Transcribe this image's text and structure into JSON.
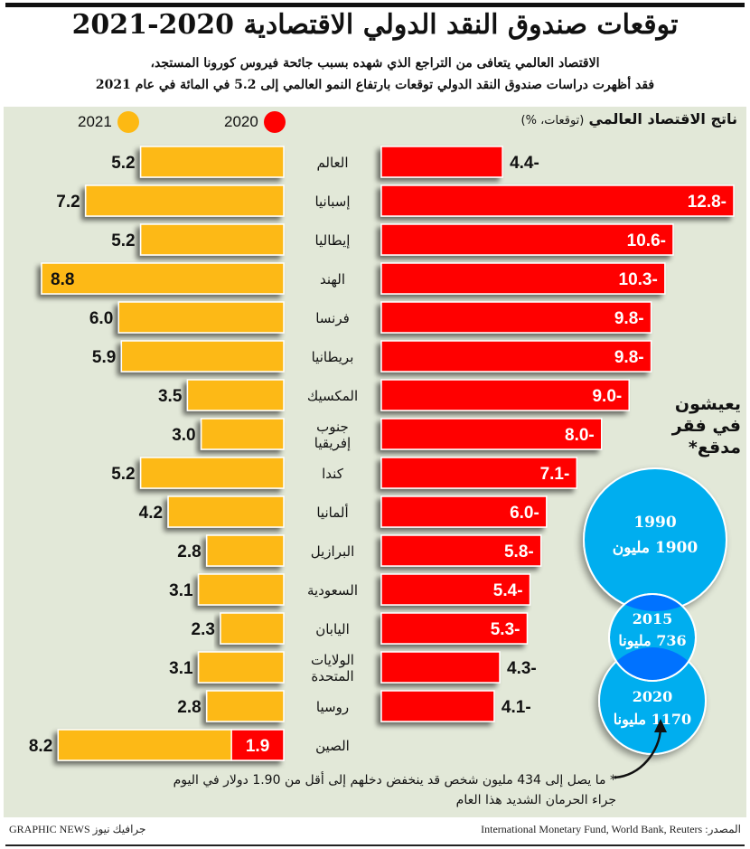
{
  "title": "توقعات صندوق النقد الدولي الاقتصادية 2020-2021",
  "subtitle_lines": [
    "الاقتصاد العالمي يتعافى من التراجع الذي شهده بسبب جائحة فيروس كورونا المستجد،",
    "فقد أظهرت دراسات صندوق النقد الدولي توقعات بارتفاع النمو العالمي إلى 5.2 في المائة في عام 2021"
  ],
  "legend": [
    {
      "label": "2020",
      "color": "#ff0000"
    },
    {
      "label": "2021",
      "color": "#fdb913"
    }
  ],
  "chart_heading": {
    "main": "ناتج الاقتصاد العالمي",
    "unit": "(توقعات، %)"
  },
  "chart_data": {
    "type": "bar",
    "title": "ناتج الاقتصاد العالمي (توقعات، %)",
    "xlabel": "",
    "ylabel": "",
    "orientation": "horizontal-diverging",
    "categories": [
      "العالم",
      "إسبانيا",
      "إيطاليا",
      "الهند",
      "فرنسا",
      "بريطانيا",
      "المكسيك",
      "جنوب إفريقيا",
      "كندا",
      "ألمانيا",
      "البرازيل",
      "السعودية",
      "اليابان",
      "الولايات المتحدة",
      "روسيا",
      "الصين"
    ],
    "series": [
      {
        "name": "2020",
        "color": "#ff0000",
        "values": [
          -4.4,
          -12.8,
          -10.6,
          -10.3,
          -9.8,
          -9.8,
          -9.0,
          -8.0,
          -7.1,
          -6.0,
          -5.8,
          -5.4,
          -5.3,
          -4.3,
          -4.1,
          1.9
        ],
        "labels": [
          "4.4-",
          "12.8-",
          "10.6-",
          "10.3-",
          "9.8-",
          "9.8-",
          "9.0-",
          "8.0-",
          "7.1-",
          "6.0-",
          "5.8-",
          "5.4-",
          "5.3-",
          "4.3-",
          "4.1-",
          "1.9"
        ]
      },
      {
        "name": "2021",
        "color": "#fdb913",
        "values": [
          5.2,
          7.2,
          5.2,
          8.8,
          6.0,
          5.9,
          3.5,
          3.0,
          5.2,
          4.2,
          2.8,
          3.1,
          2.3,
          3.1,
          2.8,
          8.2
        ],
        "labels": [
          "5.2",
          "7.2",
          "5.2",
          "8.8",
          "6.0",
          "5.9",
          "3.5",
          "3.0",
          "5.2",
          "4.2",
          "2.8",
          "3.1",
          "2.3",
          "3.1",
          "2.8",
          "8.2"
        ]
      }
    ],
    "grid": false,
    "legend_position": "top"
  },
  "poverty": {
    "title_lines": [
      "يعيشون",
      "في فقر",
      "مدقع*"
    ],
    "bubbles": [
      {
        "year": "1990",
        "value": "1900 مليون",
        "millions": 1900
      },
      {
        "year": "2015",
        "value": "736 مليونا",
        "millions": 736
      },
      {
        "year": "2020",
        "value": "1170 مليونا",
        "millions": 1170
      }
    ],
    "color": "#00aeef",
    "overlap_color": "#0072ff"
  },
  "footnote_lines": [
    "* ما يصل إلى 434 مليون شخص قد ينخفض دخلهم إلى أقل من 1.90 دولار في اليوم",
    "جراء الحرمان الشديد هذا العام"
  ],
  "source": "المصدر: International Monetary Fund, World Bank, Reuters",
  "brand": "GRAPHIC NEWS جرافيك نيوز"
}
